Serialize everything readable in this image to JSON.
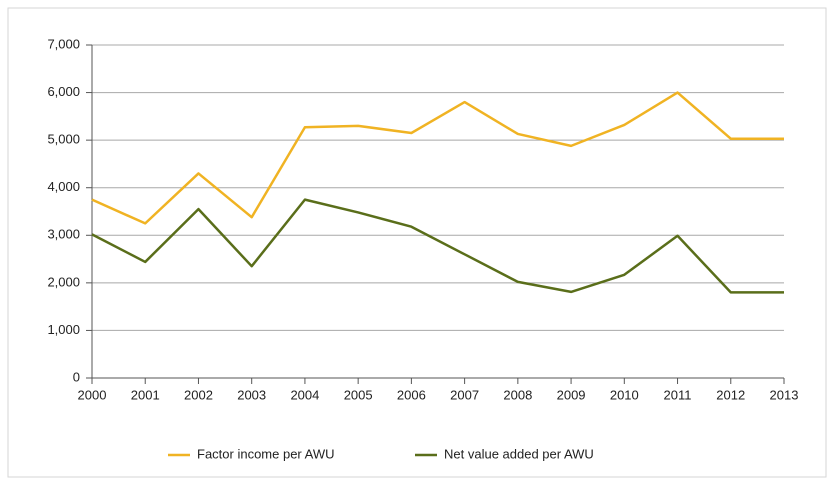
{
  "chart_data": {
    "type": "line",
    "x": [
      2000,
      2001,
      2002,
      2003,
      2004,
      2005,
      2006,
      2007,
      2008,
      2009,
      2010,
      2011,
      2012,
      2013
    ],
    "xlim": [
      2000,
      2013
    ],
    "xticks": [
      2000,
      2001,
      2002,
      2003,
      2004,
      2005,
      2006,
      2007,
      2008,
      2009,
      2010,
      2011,
      2012,
      2013
    ],
    "ylim": [
      0,
      7000
    ],
    "yticks": [
      0,
      {
        "value": 1000,
        "label": "1,000"
      },
      {
        "value": 2000,
        "label": "2,000"
      },
      {
        "value": 3000,
        "label": "3,000"
      },
      {
        "value": 4000,
        "label": "4,000"
      },
      {
        "value": 5000,
        "label": "5,000"
      },
      {
        "value": 6000,
        "label": "6,000"
      },
      {
        "value": 7000,
        "label": "7,000"
      }
    ],
    "grid": true,
    "legend": "bottom",
    "series": [
      {
        "name": "Factor income per AWU",
        "color": "#f0b323",
        "values": [
          3750,
          3250,
          4300,
          3380,
          5270,
          5300,
          5150,
          5800,
          5130,
          4880,
          5320,
          6000,
          5030,
          5030
        ]
      },
      {
        "name": "Net value added per AWU",
        "color": "#5a6e1a",
        "values": [
          3020,
          2440,
          3550,
          2350,
          3750,
          3480,
          3180,
          2600,
          2020,
          1810,
          2170,
          2990,
          1800,
          1800
        ]
      }
    ]
  }
}
